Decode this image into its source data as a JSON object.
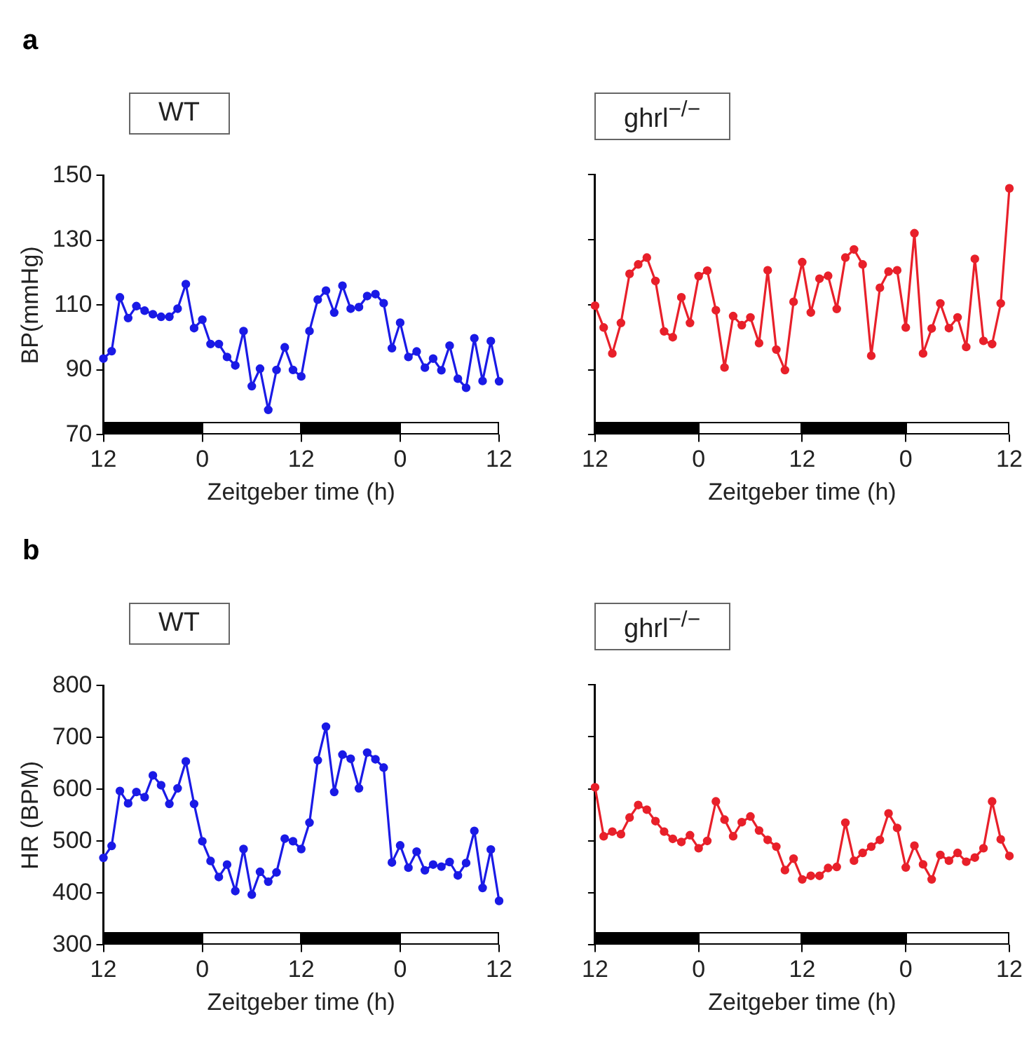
{
  "chart_data": [
    {
      "type": "line",
      "annotations": [
        "a"
      ],
      "title": "WT",
      "xlabel": "Zeitgeber time (h)",
      "ylabel": "BP(mmHg)",
      "ylim": [
        70,
        150
      ],
      "yticks": [
        70,
        90,
        110,
        130,
        150
      ],
      "grid": false,
      "legend": false,
      "marker": "circle",
      "categories": [
        "12",
        null,
        null,
        null,
        null,
        null,
        null,
        null,
        null,
        null,
        null,
        null,
        "0",
        null,
        null,
        null,
        null,
        null,
        null,
        null,
        null,
        null,
        null,
        null,
        "12",
        null,
        null,
        null,
        null,
        null,
        null,
        null,
        null,
        null,
        null,
        null,
        "0",
        null,
        null,
        null,
        null,
        null,
        null,
        null,
        null,
        null,
        null,
        null,
        "12"
      ],
      "series": [
        {
          "color": "#1a1ae6",
          "values": [
            93.5,
            95.8,
            112.4,
            106,
            109.7,
            108.3,
            107.2,
            106.4,
            106.4,
            108.9,
            116.5,
            102.9,
            105.5,
            98,
            98,
            94,
            91.4,
            102,
            85,
            90.4,
            77.7,
            90,
            97,
            90,
            88,
            102,
            111.7,
            114.5,
            107.7,
            116,
            108.9,
            109.4,
            112.8,
            113.4,
            110.6,
            96.7,
            104.6,
            94,
            95.7,
            90.7,
            93.5,
            89.9,
            97.5,
            87.3,
            84.5,
            99.8,
            86.6,
            98.9,
            86.5
          ]
        }
      ]
    },
    {
      "type": "line",
      "title": "ghrl$^{−/−}$",
      "xlabel": "Zeitgeber time (h)",
      "ylim": [
        70,
        150
      ],
      "yticks": [
        70,
        90,
        110,
        130,
        150
      ],
      "tick_labels": "x",
      "grid": false,
      "legend": false,
      "marker": "circle",
      "categories": [
        "12",
        null,
        null,
        null,
        null,
        null,
        null,
        null,
        null,
        null,
        null,
        null,
        "0",
        null,
        null,
        null,
        null,
        null,
        null,
        null,
        null,
        null,
        null,
        null,
        "12",
        null,
        null,
        null,
        null,
        null,
        null,
        null,
        null,
        null,
        null,
        null,
        "0",
        null,
        null,
        null,
        null,
        null,
        null,
        null,
        null,
        null,
        null,
        null,
        "12"
      ],
      "series": [
        {
          "color": "#e8202a",
          "values": [
            109.7,
            103,
            95,
            104.4,
            119.5,
            122.4,
            124.5,
            117.3,
            101.8,
            100,
            112.3,
            104.4,
            118.8,
            120.5,
            108.3,
            90.7,
            106.5,
            103.7,
            106.1,
            98.2,
            120.6,
            96.2,
            89.9,
            110.9,
            123.1,
            107.6,
            118,
            118.9,
            108.7,
            124.5,
            127,
            122.4,
            94.3,
            115.2,
            120.2,
            120.6,
            103,
            132,
            95,
            102.7,
            110.4,
            102.8,
            106.1,
            97,
            124.1,
            98.9,
            97.9,
            110.4,
            145.8
          ]
        }
      ]
    },
    {
      "type": "line",
      "annotations": [
        "b"
      ],
      "title": "WT",
      "xlabel": "Zeitgeber time (h)",
      "ylabel": "HR (BPM)",
      "ylim": [
        300,
        800
      ],
      "yticks": [
        300,
        400,
        500,
        600,
        700,
        800
      ],
      "grid": false,
      "legend": false,
      "marker": "circle",
      "categories": [
        "12",
        null,
        null,
        null,
        null,
        null,
        null,
        null,
        null,
        null,
        null,
        null,
        "0",
        null,
        null,
        null,
        null,
        null,
        null,
        null,
        null,
        null,
        null,
        null,
        "12",
        null,
        null,
        null,
        null,
        null,
        null,
        null,
        null,
        null,
        null,
        null,
        "0",
        null,
        null,
        null,
        null,
        null,
        null,
        null,
        null,
        null,
        null,
        null,
        "12"
      ],
      "series": [
        {
          "color": "#1a1ae6",
          "values": [
            468,
            491,
            597,
            573,
            595,
            585,
            627,
            608,
            572,
            602,
            654,
            572,
            500,
            462,
            431,
            455,
            404,
            485,
            397,
            441,
            422,
            440,
            505,
            500,
            485,
            536,
            656,
            721,
            595,
            667,
            659,
            602,
            671,
            658,
            642,
            459,
            492,
            449,
            480,
            444,
            455,
            451,
            460,
            434,
            458,
            520,
            410,
            484,
            385
          ]
        }
      ]
    },
    {
      "type": "line",
      "title": "ghrl$^{−/−}$",
      "xlabel": "Zeitgeber time (h)",
      "ylim": [
        300,
        800
      ],
      "yticks": [
        300,
        400,
        500,
        600,
        700,
        800
      ],
      "tick_labels": "x",
      "grid": false,
      "legend": false,
      "marker": "circle",
      "categories": [
        "12",
        null,
        null,
        null,
        null,
        null,
        null,
        null,
        null,
        null,
        null,
        null,
        "0",
        null,
        null,
        null,
        null,
        null,
        null,
        null,
        null,
        null,
        null,
        null,
        "12",
        null,
        null,
        null,
        null,
        null,
        null,
        null,
        null,
        null,
        null,
        null,
        "0",
        null,
        null,
        null,
        null,
        null,
        null,
        null,
        null,
        null,
        null,
        null,
        "12"
      ],
      "series": [
        {
          "color": "#e8202a",
          "values": [
            603,
            509,
            518,
            513,
            545,
            569,
            560,
            538,
            518,
            504,
            498,
            511,
            486,
            500,
            576,
            541,
            509,
            536,
            547,
            520,
            502,
            489,
            444,
            466,
            426,
            433,
            433,
            448,
            450,
            535,
            462,
            477,
            489,
            502,
            553,
            525,
            449,
            491,
            455,
            426,
            473,
            462,
            477,
            460,
            468,
            486,
            576,
            503,
            471
          ]
        }
      ]
    }
  ]
}
